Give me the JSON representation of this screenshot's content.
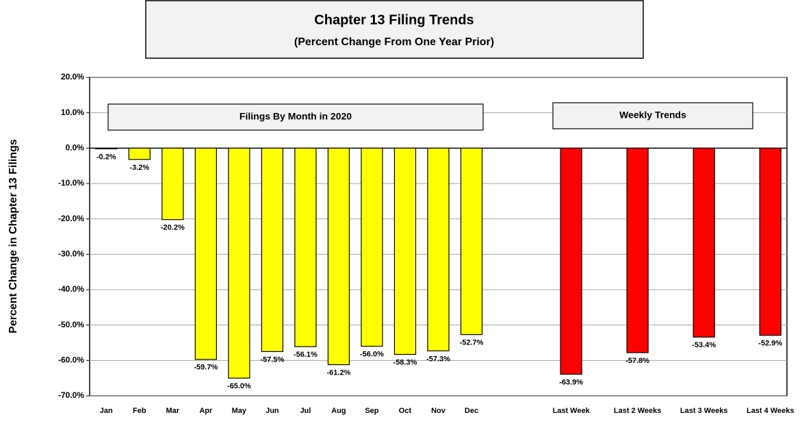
{
  "chart_data": {
    "type": "bar",
    "title": "Chapter 13 Filing Trends",
    "subtitle": "(Percent Change From One Year Prior)",
    "y_label": "Percent Change in Chapter 13 Filings",
    "annotations": [
      "Filings By Month in 2020",
      "Weekly Trends"
    ],
    "categories": [
      "Jan",
      "Feb",
      "Mar",
      "Apr",
      "May",
      "Jun",
      "Jul",
      "Aug",
      "Sep",
      "Oct",
      "Nov",
      "Dec",
      null,
      null,
      "Last Week",
      null,
      "Last 2 Weeks",
      null,
      "Last 3 Weeks",
      null,
      "Last 4 Weeks"
    ],
    "values": [
      -0.2,
      -3.2,
      -20.2,
      -59.7,
      -65.0,
      -57.5,
      -56.1,
      -61.2,
      -56.0,
      -58.3,
      -57.3,
      -52.7,
      null,
      null,
      -63.9,
      null,
      -57.8,
      null,
      -53.4,
      null,
      -52.9
    ],
    "value_labels": [
      "-0.2%",
      "-3.2%",
      "-20.2%",
      "-59.7%",
      "-65.0%",
      "-57.5%",
      "-56.1%",
      "-61.2%",
      "-56.0%",
      "-58.3%",
      "-57.3%",
      "-52.7%",
      null,
      null,
      "-63.9%",
      null,
      "-57.8%",
      null,
      "-53.4%",
      null,
      "-52.9%"
    ],
    "colors": [
      "#ffff00",
      "#ffff00",
      "#ffff00",
      "#ffff00",
      "#ffff00",
      "#ffff00",
      "#ffff00",
      "#ffff00",
      "#ffff00",
      "#ffff00",
      "#ffff00",
      "#ffff00",
      null,
      null,
      "#ff0000",
      null,
      "#ff0000",
      null,
      "#ff0000",
      null,
      "#ff0000"
    ],
    "ylim": [
      -70,
      20
    ],
    "yticks": [
      {
        "value": -70,
        "label": "-70.0%"
      },
      {
        "value": -60,
        "label": "-60.0%"
      },
      {
        "value": -50,
        "label": "-50.0%"
      },
      {
        "value": -40,
        "label": "-40.0%"
      },
      {
        "value": -30,
        "label": "-30.0%"
      },
      {
        "value": -20,
        "label": "-20.0%"
      },
      {
        "value": -10,
        "label": "-10.0%"
      },
      {
        "value": 0,
        "label": "0.0%"
      },
      {
        "value": 10,
        "label": "10.0%"
      },
      {
        "value": 20,
        "label": "20.0%"
      }
    ],
    "grid": true
  }
}
